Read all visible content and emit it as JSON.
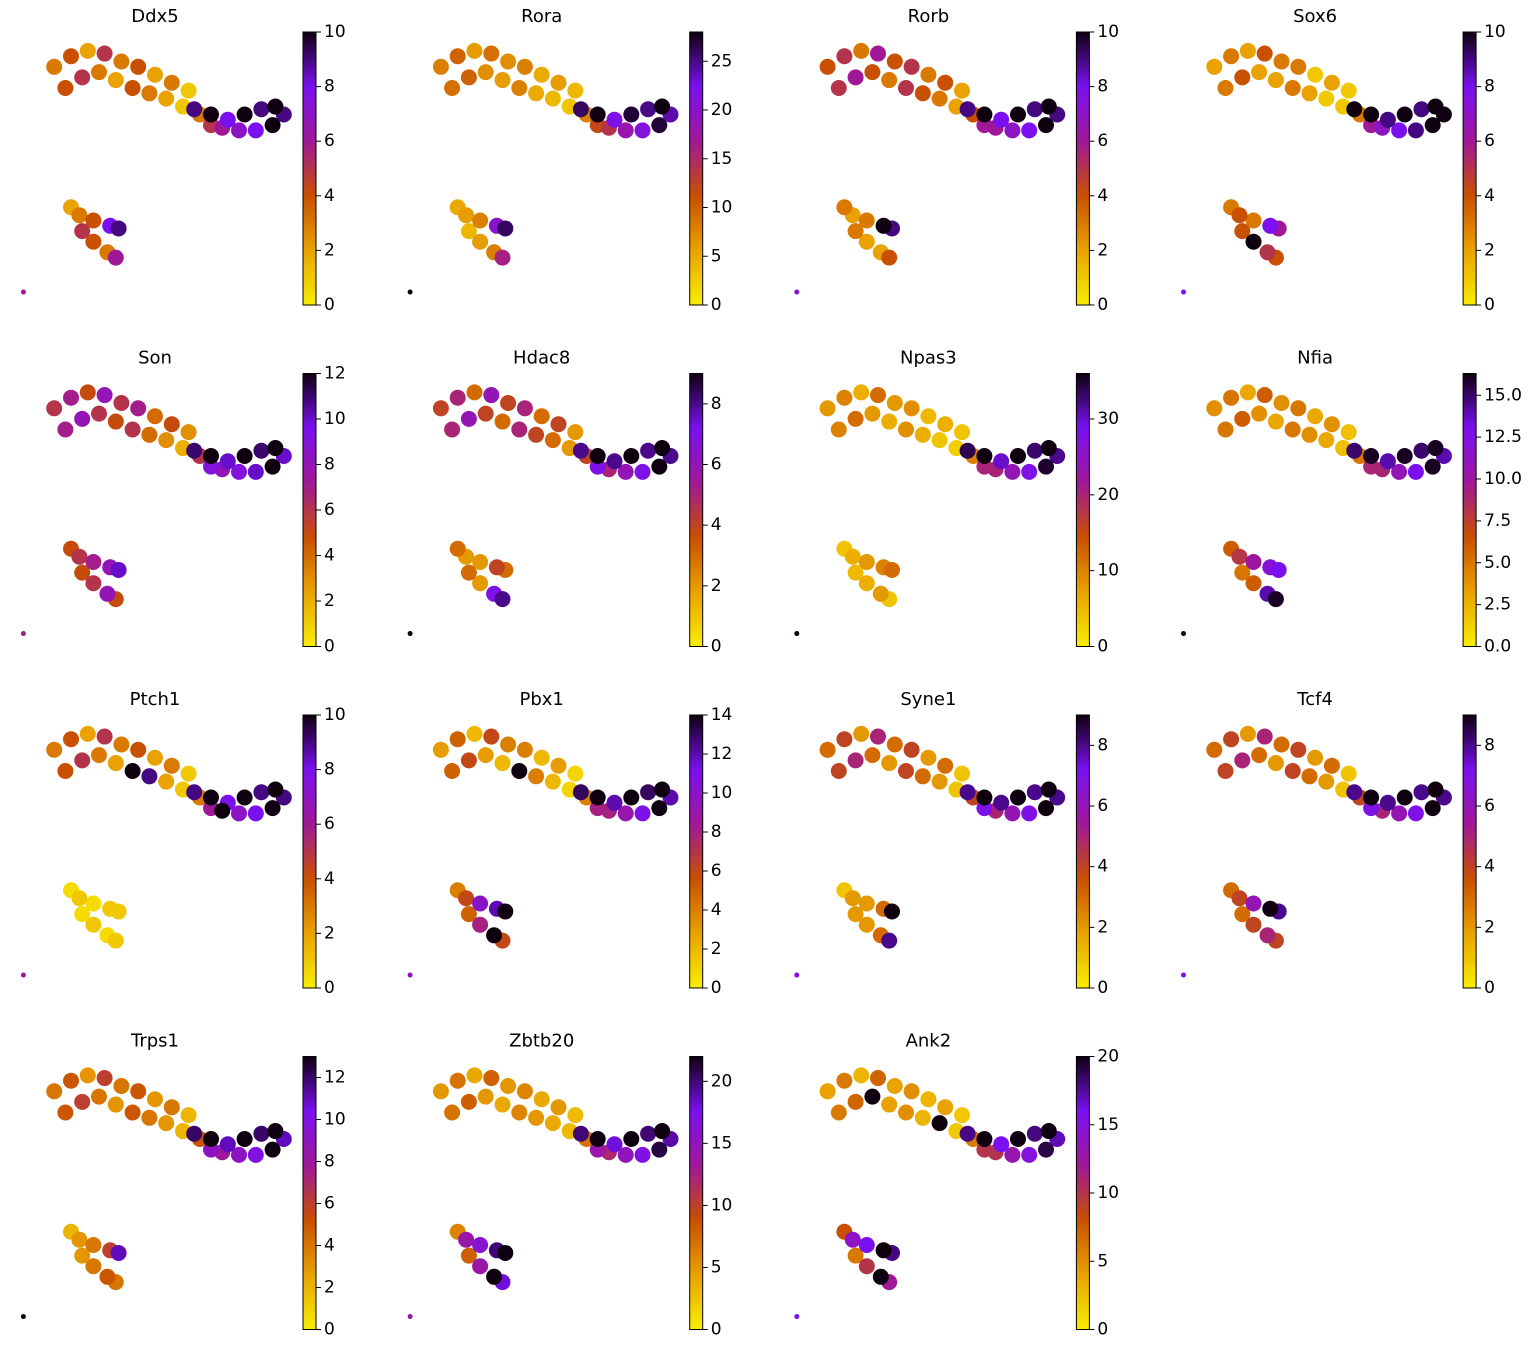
{
  "embedding": {
    "x": [
      14,
      20,
      26,
      32,
      38,
      44,
      50,
      56,
      62,
      18,
      24,
      30,
      36,
      42,
      48,
      54,
      60,
      66,
      70,
      64,
      70,
      76,
      82,
      88,
      93,
      96,
      92,
      86,
      80,
      74,
      20,
      23,
      28,
      34,
      37,
      24,
      28,
      33,
      36,
      3
    ],
    "y": [
      88,
      92,
      94,
      93,
      90,
      88,
      85,
      82,
      79,
      80,
      84,
      86,
      83,
      80,
      78,
      76,
      73,
      70,
      66,
      72,
      70,
      68,
      70,
      72,
      73,
      70,
      66,
      64,
      64,
      65,
      35,
      32,
      30,
      28,
      27,
      26,
      22,
      18,
      16,
      3
    ],
    "xlim": [
      0,
      100
    ],
    "ylim": [
      0,
      100
    ]
  },
  "colormap": [
    "#f9ee00",
    "#e9a200",
    "#c85000",
    "#a01898",
    "#7a10f0",
    "#0f000f"
  ],
  "chart_data": [
    {
      "type": "scatter",
      "title": "Ddx5",
      "clim": [
        0,
        10
      ],
      "cticks": [
        0,
        2,
        4,
        6,
        8,
        10
      ],
      "values": [
        3,
        4,
        2,
        5,
        3,
        4,
        2,
        3,
        1,
        4,
        5,
        3,
        2,
        4,
        3,
        2,
        1,
        3,
        5,
        9,
        10,
        8,
        10,
        9,
        10,
        9,
        10,
        8,
        7,
        6,
        2,
        3,
        4,
        8,
        9,
        5,
        4,
        3,
        6,
        6
      ]
    },
    {
      "type": "scatter",
      "title": "Rora",
      "clim": [
        0,
        28
      ],
      "cticks": [
        0,
        5,
        10,
        15,
        20,
        25
      ],
      "values": [
        8,
        10,
        6,
        9,
        7,
        8,
        5,
        6,
        4,
        9,
        10,
        7,
        6,
        8,
        5,
        4,
        3,
        8,
        12,
        26,
        28,
        22,
        27,
        25,
        28,
        24,
        27,
        21,
        18,
        14,
        5,
        6,
        8,
        20,
        26,
        4,
        6,
        8,
        16,
        28
      ]
    },
    {
      "type": "scatter",
      "title": "Rorb",
      "clim": [
        0,
        10
      ],
      "cticks": [
        0,
        2,
        4,
        6,
        8,
        10
      ],
      "values": [
        4,
        5,
        3,
        6,
        4,
        5,
        3,
        4,
        2,
        5,
        6,
        4,
        3,
        5,
        4,
        3,
        2,
        4,
        6,
        9,
        10,
        8,
        10,
        9,
        10,
        9,
        10,
        8,
        7,
        6,
        3,
        2,
        3,
        10,
        9,
        3,
        2,
        2,
        4,
        7
      ]
    },
    {
      "type": "scatter",
      "title": "Sox6",
      "clim": [
        0,
        10
      ],
      "cticks": [
        0,
        2,
        4,
        6,
        8,
        10
      ],
      "values": [
        2,
        3,
        2,
        4,
        3,
        3,
        1,
        2,
        1,
        3,
        4,
        2,
        2,
        3,
        2,
        1,
        1,
        3,
        6,
        10,
        10,
        9,
        10,
        9,
        10,
        10,
        10,
        9,
        8,
        7,
        3,
        4,
        3,
        8,
        6,
        4,
        10,
        5,
        4,
        8
      ]
    },
    {
      "type": "scatter",
      "title": "Son",
      "clim": [
        0,
        12
      ],
      "cticks": [
        0,
        2,
        4,
        6,
        8,
        10,
        12
      ],
      "values": [
        6,
        7,
        5,
        8,
        6,
        7,
        4,
        5,
        3,
        7,
        8,
        6,
        5,
        6,
        4,
        3,
        2,
        6,
        9,
        11,
        12,
        10,
        12,
        11,
        12,
        10,
        12,
        10,
        9,
        8,
        5,
        6,
        7,
        8,
        10,
        5,
        6,
        8,
        5,
        7
      ]
    },
    {
      "type": "scatter",
      "title": "Hdac8",
      "clim": [
        0,
        9
      ],
      "cticks": [
        0,
        2,
        4,
        6,
        8
      ],
      "values": [
        4,
        5,
        3,
        6,
        4,
        5,
        3,
        4,
        2,
        5,
        6,
        4,
        3,
        5,
        4,
        3,
        2,
        4,
        7,
        8,
        9,
        8,
        9,
        8,
        9,
        8,
        9,
        7,
        6,
        5,
        3,
        2,
        2,
        4,
        3,
        3,
        2,
        7,
        8,
        9
      ]
    },
    {
      "type": "scatter",
      "title": "Npas3",
      "clim": [
        0,
        36
      ],
      "cticks": [
        0,
        10,
        20,
        30
      ],
      "values": [
        8,
        10,
        6,
        12,
        8,
        9,
        5,
        6,
        4,
        10,
        12,
        8,
        6,
        9,
        6,
        4,
        3,
        10,
        20,
        34,
        36,
        30,
        36,
        33,
        36,
        32,
        35,
        28,
        24,
        20,
        4,
        6,
        8,
        10,
        12,
        5,
        6,
        8,
        4,
        36
      ]
    },
    {
      "type": "scatter",
      "title": "Nfia",
      "clim": [
        0,
        16.3
      ],
      "cticks": [
        {
          "value": 0,
          "label": "0.0"
        },
        2.5,
        {
          "value": 5,
          "label": "5.0"
        },
        7.5,
        {
          "value": 10,
          "label": "10.0"
        },
        12.5,
        {
          "value": 15,
          "label": "15.0"
        }
      ],
      "values": [
        4,
        5,
        3,
        6,
        4,
        5,
        3,
        4,
        2,
        5,
        6,
        4,
        3,
        5,
        4,
        3,
        2,
        5,
        9,
        15,
        16,
        14,
        16,
        15,
        16,
        14,
        16,
        13,
        11,
        9,
        6,
        8,
        10,
        12,
        13,
        5,
        6,
        14,
        16,
        16
      ]
    },
    {
      "type": "scatter",
      "title": "Ptch1",
      "clim": [
        0,
        10
      ],
      "cticks": [
        0,
        2,
        4,
        6,
        8,
        10
      ],
      "values": [
        3,
        4,
        2,
        5,
        3,
        4,
        2,
        3,
        1,
        4,
        5,
        3,
        2,
        10,
        9,
        2,
        1,
        3,
        6,
        9,
        10,
        8,
        10,
        9,
        10,
        9,
        10,
        8,
        7,
        10,
        0.5,
        1,
        0.5,
        1,
        1,
        0.5,
        1,
        0.5,
        1,
        6
      ]
    },
    {
      "type": "scatter",
      "title": "Pbx1",
      "clim": [
        0,
        14
      ],
      "cticks": [
        0,
        2,
        4,
        6,
        8,
        10,
        12,
        14
      ],
      "values": [
        3,
        5,
        2,
        6,
        4,
        4,
        2,
        3,
        1,
        5,
        6,
        3,
        2,
        14,
        4,
        2,
        1,
        4,
        8,
        13,
        14,
        12,
        14,
        13,
        14,
        12,
        14,
        11,
        9,
        8,
        4,
        6,
        10,
        12,
        14,
        5,
        8,
        14,
        6,
        10
      ]
    },
    {
      "type": "scatter",
      "title": "Syne1",
      "clim": [
        0,
        9
      ],
      "cticks": [
        0,
        2,
        4,
        6,
        8
      ],
      "values": [
        3,
        4,
        2,
        5,
        3,
        4,
        2,
        3,
        1,
        4,
        5,
        3,
        2,
        4,
        3,
        2,
        1,
        4,
        7,
        8,
        9,
        8,
        9,
        8,
        9,
        8,
        9,
        7,
        6,
        5,
        1,
        2,
        2,
        3,
        9,
        2,
        2,
        3,
        8,
        7
      ]
    },
    {
      "type": "scatter",
      "title": "Tcf4",
      "clim": [
        0,
        9
      ],
      "cticks": [
        0,
        2,
        4,
        6,
        8
      ],
      "values": [
        3,
        4,
        2,
        5,
        3,
        4,
        2,
        3,
        1,
        4,
        5,
        3,
        2,
        4,
        3,
        2,
        1,
        4,
        7,
        8,
        9,
        8,
        9,
        8,
        9,
        8,
        9,
        7,
        6,
        5,
        3,
        4,
        6,
        9,
        8,
        3,
        4,
        5,
        4,
        7
      ]
    },
    {
      "type": "scatter",
      "title": "Trps1",
      "clim": [
        0,
        13
      ],
      "cticks": [
        0,
        2,
        4,
        6,
        8,
        10,
        12
      ],
      "values": [
        4,
        5,
        3,
        6,
        4,
        5,
        3,
        4,
        2,
        5,
        6,
        4,
        3,
        5,
        4,
        3,
        2,
        5,
        9,
        12,
        13,
        11,
        13,
        12,
        13,
        11,
        13,
        10,
        9,
        8,
        2,
        3,
        4,
        6,
        11,
        3,
        4,
        5,
        4,
        13
      ]
    },
    {
      "type": "scatter",
      "title": "Zbtb20",
      "clim": [
        0,
        22
      ],
      "cticks": [
        0,
        5,
        10,
        15,
        20
      ],
      "values": [
        5,
        7,
        4,
        8,
        5,
        6,
        4,
        5,
        3,
        7,
        8,
        5,
        4,
        6,
        5,
        4,
        3,
        7,
        14,
        20,
        22,
        18,
        22,
        20,
        22,
        19,
        21,
        17,
        15,
        12,
        6,
        14,
        16,
        20,
        22,
        8,
        14,
        22,
        18,
        14
      ]
    },
    {
      "type": "scatter",
      "title": "Ank2",
      "clim": [
        0,
        20
      ],
      "cticks": [
        0,
        5,
        10,
        15,
        20
      ],
      "values": [
        4,
        6,
        3,
        7,
        4,
        5,
        3,
        4,
        2,
        6,
        7,
        20,
        4,
        5,
        3,
        20,
        2,
        6,
        10,
        18,
        20,
        16,
        20,
        18,
        20,
        17,
        19,
        15,
        13,
        10,
        8,
        14,
        16,
        20,
        18,
        6,
        10,
        20,
        12,
        16
      ]
    }
  ]
}
